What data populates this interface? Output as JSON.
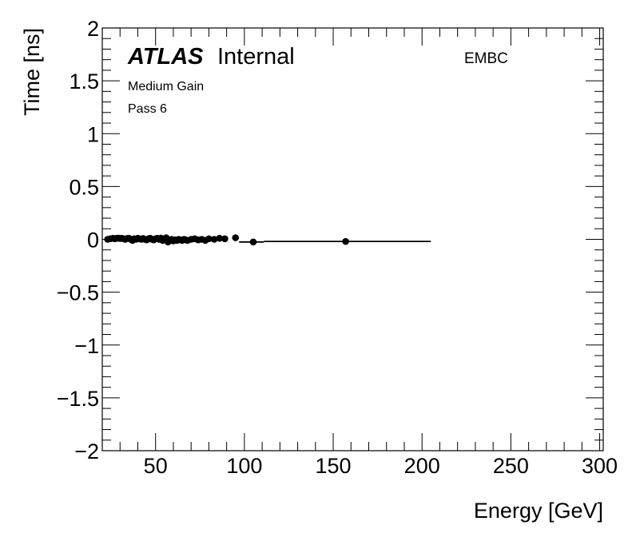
{
  "chart_data": {
    "type": "scatter",
    "title": "",
    "xlabel": "Energy [GeV]",
    "ylabel": "Time [ns]",
    "xlim": [
      20,
      302
    ],
    "ylim": [
      -2,
      2
    ],
    "xticks": [
      50,
      100,
      150,
      200,
      250,
      300
    ],
    "xtick_labels": [
      "50",
      "100",
      "150",
      "200",
      "250",
      "300"
    ],
    "yticks": [
      -2,
      -1.5,
      -1,
      -0.5,
      0,
      0.5,
      1,
      1.5,
      2
    ],
    "ytick_labels": [
      "−2",
      "−1.5",
      "−1",
      "−0.5",
      "0",
      "0.5",
      "1",
      "1.5",
      "2"
    ],
    "grid": false,
    "annotations": {
      "atlas": "ATLAS",
      "internal": "Internal",
      "gain": "Medium Gain",
      "pass": "Pass 6",
      "region": "EMBC"
    },
    "series": [
      {
        "name": "EMBC",
        "color": "#000000",
        "points": [
          [
            23,
            0.0
          ],
          [
            24.5,
            0.005
          ],
          [
            26,
            0.01
          ],
          [
            27,
            0.005
          ],
          [
            28,
            0.01
          ],
          [
            29,
            0.012
          ],
          [
            30,
            0.008
          ],
          [
            31,
            0.01
          ],
          [
            32,
            0.005
          ],
          [
            33,
            0.0
          ],
          [
            34,
            0.008
          ],
          [
            35,
            0.01
          ],
          [
            36,
            0.0
          ],
          [
            37,
            -0.01
          ],
          [
            38,
            0.005
          ],
          [
            39,
            0.0
          ],
          [
            40,
            0.01
          ],
          [
            41,
            0.005
          ],
          [
            42,
            0.0
          ],
          [
            43,
            0.008
          ],
          [
            44,
            0.0
          ],
          [
            45,
            -0.005
          ],
          [
            46,
            0.005
          ],
          [
            47,
            0.01
          ],
          [
            48,
            0.0
          ],
          [
            49,
            -0.005
          ],
          [
            50,
            0.005
          ],
          [
            51,
            0.01
          ],
          [
            52,
            0.0
          ],
          [
            53,
            0.012
          ],
          [
            54,
            -0.01
          ],
          [
            55,
            0.005
          ],
          [
            56,
            0.015
          ],
          [
            57,
            -0.025
          ],
          [
            58,
            -0.01
          ],
          [
            59,
            0.0
          ],
          [
            60,
            -0.015
          ],
          [
            61,
            -0.005
          ],
          [
            62,
            -0.01
          ],
          [
            63,
            0.0
          ],
          [
            64,
            -0.005
          ],
          [
            65,
            -0.01
          ],
          [
            66,
            0.0
          ],
          [
            67,
            -0.005
          ],
          [
            68,
            -0.01
          ],
          [
            70,
            0.0
          ],
          [
            72,
            0.005
          ],
          [
            74,
            -0.005
          ],
          [
            76,
            0.0
          ],
          [
            78,
            -0.01
          ],
          [
            80,
            0.005
          ],
          [
            83,
            0.0
          ],
          [
            86,
            0.01
          ],
          [
            89,
            0.005
          ],
          [
            95,
            0.015
          ]
        ],
        "error_points": [
          {
            "x": 105,
            "y": -0.025,
            "xerr": [
              97,
              111
            ]
          },
          {
            "x": 157,
            "y": -0.02,
            "xerr": [
              111,
              205
            ]
          }
        ]
      }
    ]
  }
}
